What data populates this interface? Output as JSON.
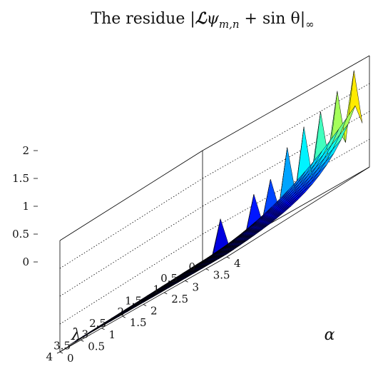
{
  "chart_data": {
    "type": "surface",
    "title": "The residue |ℒψm,n + sin θ|∞",
    "title_parts": {
      "prefix": "The residue |",
      "script_L": "ℒ",
      "psi": "ψ",
      "subscript": "m,n",
      "suffix": " + sin θ|",
      "infinity": "∞"
    },
    "xlabel": "λ",
    "ylabel": "α",
    "xlim": [
      0,
      4
    ],
    "ylim": [
      0,
      4
    ],
    "zlim": [
      0,
      2
    ],
    "x_ticks": [
      "0",
      "0.5",
      "1",
      "1.5",
      "2",
      "2.5",
      "3",
      "3.5",
      "4"
    ],
    "y_ticks": [
      "0",
      "0.5",
      "1",
      "1.5",
      "2",
      "2.5",
      "3",
      "3.5",
      "4"
    ],
    "z_ticks": [
      "0",
      "0.5",
      "1",
      "1.5",
      "2"
    ],
    "grid": true,
    "colormap": "jet",
    "x": [
      0.2,
      0.4,
      0.6,
      0.8,
      1.0,
      1.2,
      1.4,
      1.6,
      1.8,
      2.0,
      2.2,
      2.4,
      2.6,
      2.8,
      3.0,
      3.2,
      3.4,
      3.6,
      3.8,
      4.0
    ],
    "y": [
      0.2,
      0.4,
      0.6,
      0.8,
      1.0,
      1.2,
      1.4,
      1.6,
      1.8,
      2.0,
      2.2,
      2.4,
      2.6,
      2.8,
      3.0,
      3.2,
      3.4,
      3.6,
      3.8,
      4.0
    ],
    "z_model": {
      "description_of_values": "residue ≈ ridge height along λ = 0.2 peaking at α = 4 (about 1.9), decaying with λ; alternating spikes on the ridge",
      "peaks_on_ridge": [
        {
          "alpha": 0.6,
          "value": 0.6
        },
        {
          "alpha": 1.4,
          "value": 0.7
        },
        {
          "alpha": 1.8,
          "value": 0.8
        },
        {
          "alpha": 2.2,
          "value": 1.2
        },
        {
          "alpha": 2.6,
          "value": 1.4
        },
        {
          "alpha": 3.0,
          "value": 1.5
        },
        {
          "alpha": 3.4,
          "value": 1.7
        },
        {
          "alpha": 3.8,
          "value": 1.9
        }
      ]
    }
  }
}
